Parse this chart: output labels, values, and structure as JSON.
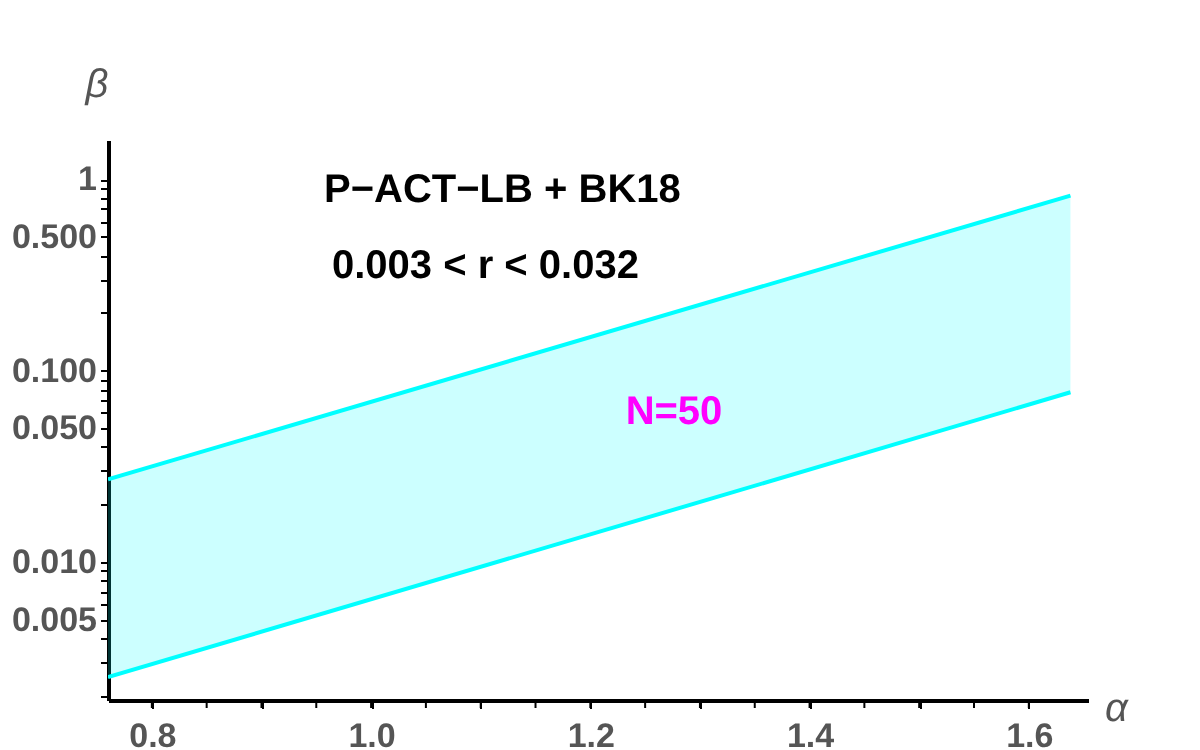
{
  "chart_data": {
    "type": "line",
    "title": "P−ACT−LB + BK18",
    "subtitle": "0.003 < r < 0.032",
    "xlabel": "α",
    "ylabel": "β",
    "log": "y",
    "grid": false,
    "x": [
      0.76,
      1.638
    ],
    "xlim": [
      0.76,
      1.654
    ],
    "ylim": [
      0.0019,
      1.6
    ],
    "xticks": [
      0.8,
      {
        "value": 0.85,
        "label": null
      },
      {
        "value": 0.9,
        "label": null
      },
      {
        "value": 0.95,
        "label": null
      },
      {
        "value": 1.0,
        "label": "1.0"
      },
      {
        "value": 1.05,
        "label": null
      },
      {
        "value": 1.1,
        "label": null
      },
      {
        "value": 1.15,
        "label": null
      },
      1.2,
      {
        "value": 1.25,
        "label": null
      },
      {
        "value": 1.3,
        "label": null
      },
      {
        "value": 1.35,
        "label": null
      },
      1.4,
      {
        "value": 1.45,
        "label": null
      },
      {
        "value": 1.5,
        "label": null
      },
      {
        "value": 1.55,
        "label": null
      },
      1.6
    ],
    "yticks": [
      {
        "value": 0.002,
        "label": null
      },
      {
        "value": 0.003,
        "label": null
      },
      {
        "value": 0.004,
        "label": null
      },
      {
        "value": 0.005,
        "label": "0.005"
      },
      {
        "value": 0.006,
        "label": null
      },
      {
        "value": 0.007,
        "label": null
      },
      {
        "value": 0.008,
        "label": null
      },
      {
        "value": 0.009,
        "label": null
      },
      {
        "value": 0.01,
        "label": "0.010"
      },
      {
        "value": 0.02,
        "label": null
      },
      {
        "value": 0.03,
        "label": null
      },
      {
        "value": 0.04,
        "label": null
      },
      {
        "value": 0.05,
        "label": "0.050"
      },
      {
        "value": 0.06,
        "label": null
      },
      {
        "value": 0.07,
        "label": null
      },
      {
        "value": 0.08,
        "label": null
      },
      {
        "value": 0.09,
        "label": null
      },
      {
        "value": 0.1,
        "label": "0.100"
      },
      {
        "value": 0.2,
        "label": null
      },
      {
        "value": 0.3,
        "label": null
      },
      {
        "value": 0.4,
        "label": null
      },
      {
        "value": 0.5,
        "label": "0.500"
      },
      {
        "value": 0.6,
        "label": null
      },
      {
        "value": 0.7,
        "label": null
      },
      {
        "value": 0.8,
        "label": null
      },
      {
        "value": 0.9,
        "label": null
      },
      {
        "value": 1,
        "label": "1"
      }
    ],
    "series": [
      {
        "color": "#00ffff",
        "values": [
          0.027,
          0.82
        ],
        "lower": [
          0.0025,
          0.077
        ],
        "upper": [
          0.027,
          0.82
        ]
      },
      {
        "color": "#00ffff",
        "values": [
          0.0025,
          0.077
        ]
      }
    ],
    "annotations": [
      "N=50"
    ]
  }
}
